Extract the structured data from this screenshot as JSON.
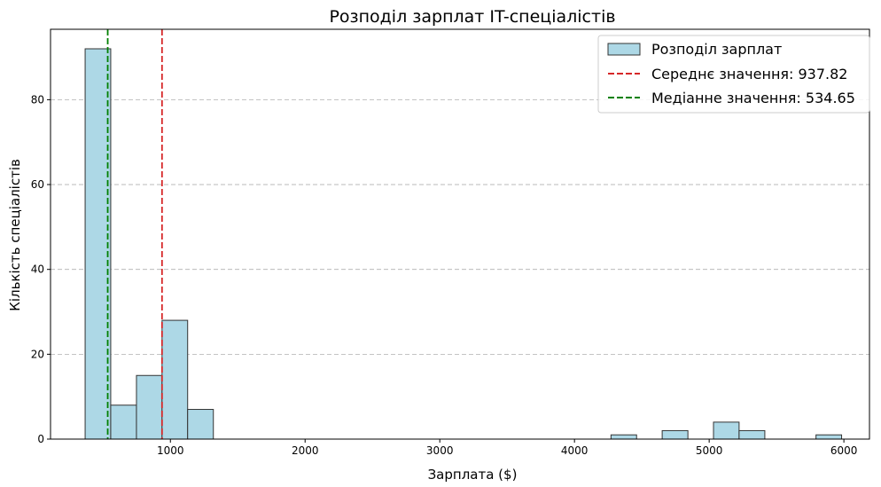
{
  "chart_data": {
    "type": "bar",
    "title": "Розподіл зарплат IT-спеціалістів",
    "xlabel": "Зарплата ($)",
    "ylabel": "Кількість спеціалістів",
    "xlim": [
      110,
      6190
    ],
    "ylim": [
      0,
      96.6
    ],
    "xticks": [
      1000,
      2000,
      3000,
      4000,
      5000,
      6000
    ],
    "yticks": [
      0,
      20,
      40,
      60,
      80
    ],
    "grid": "y-dashed",
    "legend_position": "top-right",
    "histogram": {
      "name": "Розподіл зарплат",
      "color": "#add8e6",
      "edge_color": "#333333",
      "bins": [
        {
          "x0": 367,
          "x1": 557,
          "count": 92
        },
        {
          "x0": 557,
          "x1": 748,
          "count": 8
        },
        {
          "x0": 748,
          "x1": 938,
          "count": 15
        },
        {
          "x0": 938,
          "x1": 1128,
          "count": 28
        },
        {
          "x0": 1128,
          "x1": 1319,
          "count": 7
        },
        {
          "x0": 4271,
          "x1": 4461,
          "count": 1
        },
        {
          "x0": 4651,
          "x1": 4842,
          "count": 2
        },
        {
          "x0": 5032,
          "x1": 5222,
          "count": 4
        },
        {
          "x0": 5222,
          "x1": 5413,
          "count": 2
        },
        {
          "x0": 5793,
          "x1": 5983,
          "count": 1
        }
      ]
    },
    "reference_lines": [
      {
        "label": "Середнє значення: 937.82",
        "value": 937.82,
        "color": "#d62728"
      },
      {
        "label": "Медіанне значення: 534.65",
        "value": 534.65,
        "color": "#008000"
      }
    ]
  }
}
